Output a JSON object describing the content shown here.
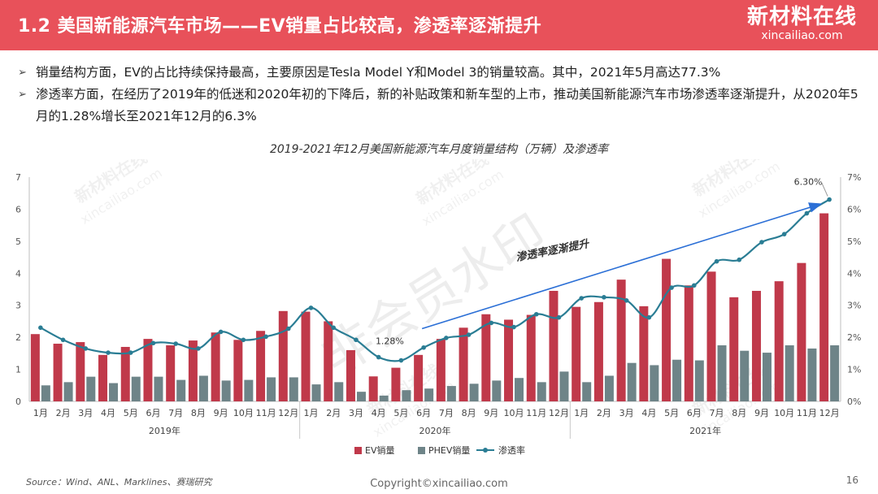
{
  "header": {
    "title": "1.2 美国新能源汽车市场——EV销量占比较高，渗透率逐渐提升",
    "brand_cn": "新材料在线",
    "brand_url": "xincailiao.com"
  },
  "bullets": [
    "销量结构方面，EV的占比持续保持最高，主要原因是Tesla Model Y和Model 3的销量较高。其中，2021年5月高达77.3%",
    "渗透率方面，在经历了2019年的低迷和2020年初的下降后，新的补贴政策和新车型的上市，推动美国新能源汽车市场渗透率逐渐提升，从2020年5月的1.28%增长至2021年12月的6.3%"
  ],
  "chart_data": {
    "type": "bar",
    "title": "2019-2021年12月美国新能源汽车月度销量结构（万辆）及渗透率",
    "categories": [
      "1月",
      "2月",
      "3月",
      "4月",
      "5月",
      "6月",
      "7月",
      "8月",
      "9月",
      "10月",
      "11月",
      "12月",
      "1月",
      "2月",
      "3月",
      "4月",
      "5月",
      "6月",
      "7月",
      "8月",
      "9月",
      "10月",
      "11月",
      "12月",
      "1月",
      "2月",
      "3月",
      "4月",
      "5月",
      "6月",
      "7月",
      "8月",
      "9月",
      "10月",
      "11月",
      "12月"
    ],
    "years": [
      {
        "label": "2019年",
        "start": 0,
        "end": 12
      },
      {
        "label": "2020年",
        "start": 12,
        "end": 24
      },
      {
        "label": "2021年",
        "start": 24,
        "end": 36
      }
    ],
    "series": [
      {
        "name": "EV销量",
        "type": "bar",
        "axis": "left",
        "color": "#c0394a",
        "values": [
          2.1,
          1.8,
          1.85,
          1.45,
          1.7,
          1.95,
          1.75,
          1.9,
          2.15,
          1.92,
          2.2,
          2.82,
          2.8,
          2.5,
          1.6,
          0.78,
          1.05,
          1.45,
          1.95,
          2.3,
          2.72,
          2.55,
          2.7,
          3.45,
          2.95,
          3.1,
          3.8,
          2.97,
          4.45,
          3.62,
          4.05,
          3.25,
          3.45,
          3.75,
          4.32,
          5.87
        ]
      },
      {
        "name": "PHEV销量",
        "type": "bar",
        "axis": "left",
        "color": "#6e8488",
        "values": [
          0.5,
          0.6,
          0.77,
          0.57,
          0.77,
          0.77,
          0.67,
          0.8,
          0.65,
          0.67,
          0.75,
          0.75,
          0.53,
          0.6,
          0.3,
          0.18,
          0.35,
          0.4,
          0.48,
          0.55,
          0.65,
          0.73,
          0.6,
          0.93,
          0.6,
          0.8,
          1.2,
          1.13,
          1.3,
          1.28,
          1.75,
          1.58,
          1.52,
          1.75,
          1.65,
          1.75
        ]
      },
      {
        "name": "渗透率",
        "type": "line",
        "axis": "right",
        "color": "#2a7d94",
        "values": [
          2.3,
          1.92,
          1.65,
          1.52,
          1.52,
          1.82,
          1.8,
          1.65,
          2.17,
          1.92,
          2.02,
          2.27,
          2.92,
          2.3,
          1.92,
          1.38,
          1.28,
          1.68,
          1.98,
          2.08,
          2.45,
          2.32,
          2.72,
          2.62,
          3.22,
          3.25,
          3.15,
          2.62,
          3.55,
          3.62,
          4.37,
          4.42,
          4.97,
          5.22,
          5.87,
          6.3
        ]
      }
    ],
    "ylim_left": [
      0,
      7
    ],
    "yticks_left": [
      "0",
      "1",
      "2",
      "3",
      "4",
      "5",
      "6",
      "7"
    ],
    "ylim_right": [
      0,
      7
    ],
    "yticks_right": [
      "0%",
      "1%",
      "2%",
      "3%",
      "4%",
      "5%",
      "6%",
      "7%"
    ],
    "annotations": {
      "low_label": "1.28%",
      "high_label": "6.30%",
      "trend_label": "渗透率逐渐提升"
    },
    "legend": [
      "EV销量",
      "PHEV销量",
      "渗透率"
    ],
    "legend_position": "bottom",
    "grid": false
  },
  "watermarks": {
    "center": "非会员水印",
    "brand": "新材料在线",
    "url": "xincailiao.com"
  },
  "footer": {
    "source": "Source：Wind、ANL、Marklines、赛瑞研究",
    "copyright": "Copyright©xincailiao.com",
    "page": "16"
  }
}
